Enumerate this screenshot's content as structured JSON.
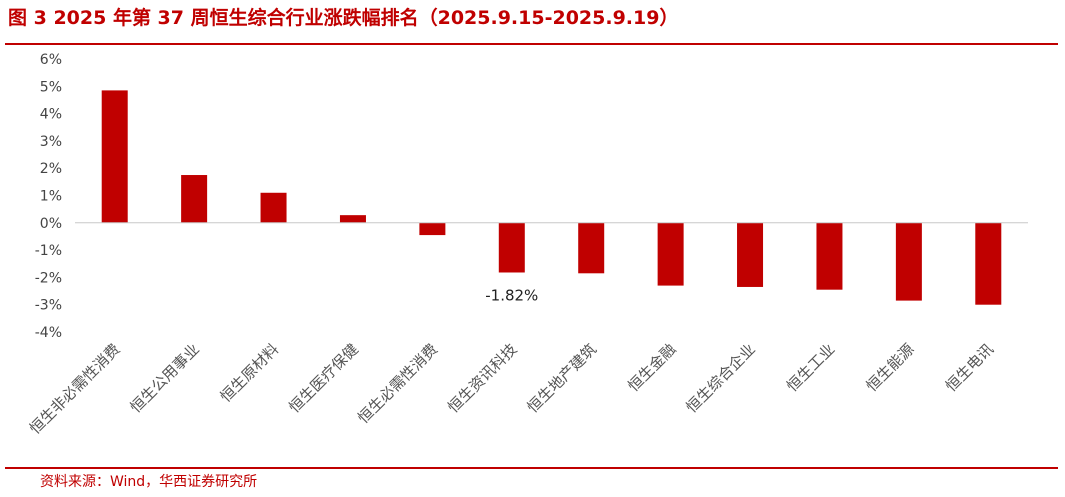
{
  "figure": {
    "title": "图 3 2025 年第 37 周恒生综合行业涨跌幅排名（2025.9.15-2025.9.19）",
    "source": "资料来源：Wind，华西证券研究所"
  },
  "colors": {
    "bar": "#c00000",
    "accent": "#c00000"
  },
  "chart_data": {
    "type": "bar",
    "categories": [
      "恒生非必需性消费",
      "恒生公用事业",
      "恒生原材料",
      "恒生医疗保健",
      "恒生必需性消费",
      "恒生资讯科技",
      "恒生地产建筑",
      "恒生金融",
      "恒生综合企业",
      "恒生工业",
      "恒生能源",
      "恒生电讯"
    ],
    "values": [
      4.85,
      1.75,
      1.1,
      0.28,
      -0.45,
      -1.82,
      -1.85,
      -2.3,
      -2.35,
      -2.45,
      -2.85,
      -3.0
    ],
    "ylim": [
      -4,
      6
    ],
    "yticks": [
      6,
      5,
      4,
      3,
      2,
      1,
      0,
      -1,
      -2,
      -3,
      -4
    ],
    "ytick_labels": [
      "6%",
      "5%",
      "4%",
      "3%",
      "2%",
      "1%",
      "0%",
      "-1%",
      "-2%",
      "-3%",
      "-4%"
    ],
    "annotations": [
      {
        "category_index": 5,
        "text": "-1.82%"
      }
    ],
    "grid": false,
    "legend": "none"
  }
}
